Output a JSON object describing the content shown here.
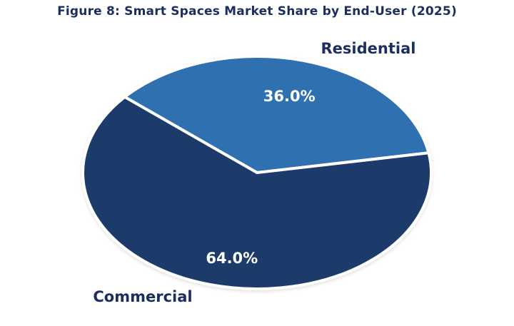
{
  "chart_data": {
    "type": "pie",
    "title": "Figure 8: Smart Spaces Market Share by End-User (2025)",
    "slices": [
      {
        "label": "Residential",
        "value": 36.0,
        "display": "36.0%",
        "color": "#2e6fb0"
      },
      {
        "label": "Commercial",
        "value": 64.0,
        "display": "64.0%",
        "color": "#1c3a6b"
      }
    ],
    "legend": "none",
    "label_color": "#1b2f5e"
  }
}
